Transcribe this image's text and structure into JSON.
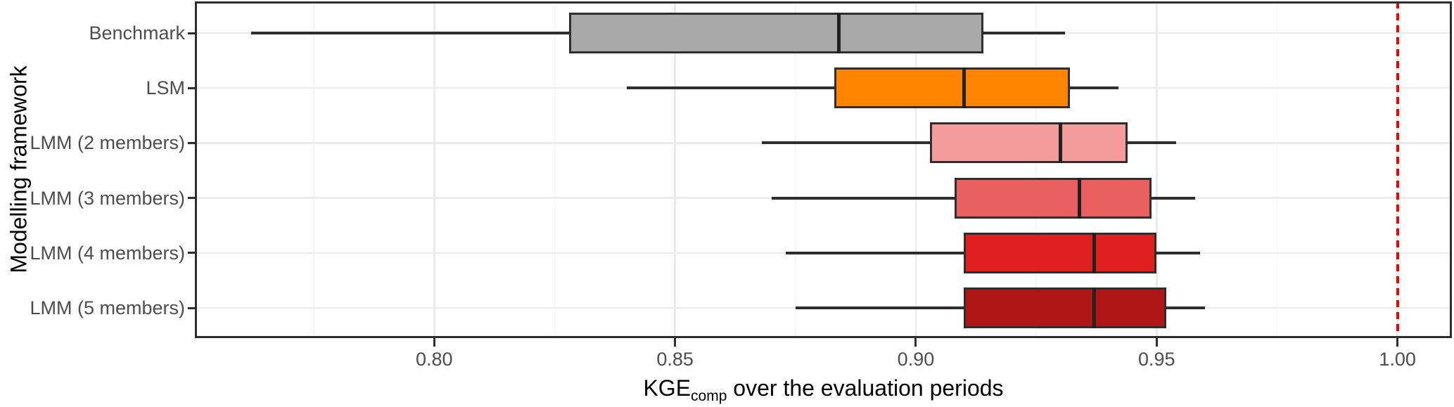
{
  "figure": {
    "y_axis_title": "Modelling framework",
    "x_axis_title": {
      "prefix": "KGE",
      "subscript": "comp",
      "suffix": " over the evaluation periods"
    }
  },
  "chart_data": {
    "type": "boxplot",
    "orientation": "horizontal",
    "title": "",
    "xlabel": "KGE_comp over the evaluation periods",
    "ylabel": "Modelling framework",
    "categories": [
      "Benchmark",
      "LSM",
      "LMM (2 members)",
      "LMM (3 members)",
      "LMM (4 members)",
      "LMM (5 members)"
    ],
    "series": [
      {
        "name": "Benchmark",
        "whisker_low": 0.762,
        "q1": 0.828,
        "median": 0.884,
        "q3": 0.914,
        "whisker_high": 0.931,
        "fill": "#A9A9A9"
      },
      {
        "name": "LSM",
        "whisker_low": 0.84,
        "q1": 0.883,
        "median": 0.91,
        "q3": 0.932,
        "whisker_high": 0.942,
        "fill": "#FF8400"
      },
      {
        "name": "LMM (2 members)",
        "whisker_low": 0.868,
        "q1": 0.903,
        "median": 0.93,
        "q3": 0.944,
        "whisker_high": 0.954,
        "fill": "#F49C9C"
      },
      {
        "name": "LMM (3 members)",
        "whisker_low": 0.87,
        "q1": 0.908,
        "median": 0.934,
        "q3": 0.949,
        "whisker_high": 0.958,
        "fill": "#EA5F5F"
      },
      {
        "name": "LMM (4 members)",
        "whisker_low": 0.873,
        "q1": 0.91,
        "median": 0.937,
        "q3": 0.95,
        "whisker_high": 0.959,
        "fill": "#E01F1F"
      },
      {
        "name": "LMM (5 members)",
        "whisker_low": 0.875,
        "q1": 0.91,
        "median": 0.937,
        "q3": 0.952,
        "whisker_high": 0.96,
        "fill": "#B01616"
      }
    ],
    "x_tick_labels": [
      "0.80",
      "0.85",
      "0.90",
      "0.95",
      "1.00"
    ],
    "x_tick_values": [
      0.8,
      0.85,
      0.9,
      0.95,
      1.0
    ],
    "x_minor_tick_values": [
      0.775,
      0.825,
      0.875,
      0.925,
      0.975
    ],
    "xlim": [
      0.7503,
      1.0113
    ],
    "grid": {
      "show": true,
      "major_color": "#EBEBEB",
      "minor_color": "#F5F5F5",
      "horizontal_major": true
    },
    "reference_line": {
      "x": 1.0,
      "color": "#F80000",
      "style": "dashed"
    },
    "legend": "none",
    "colors": {
      "box_border": "#2E2E2E",
      "median": "#222222",
      "whisker": "#2E2E2E",
      "axis_text": "#4D4D4D",
      "axis_title": "#000000",
      "panel_background": "#FFFFFF"
    }
  }
}
